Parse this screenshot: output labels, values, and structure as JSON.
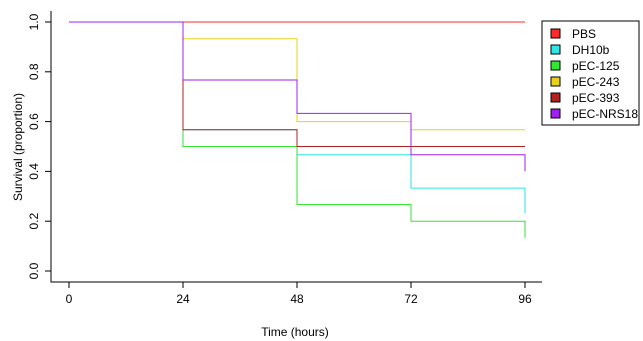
{
  "chart_data": {
    "type": "line",
    "subtype": "step",
    "title": "",
    "xlabel": "Time (hours)",
    "ylabel": "Survival (proportion)",
    "xlim": [
      0,
      96
    ],
    "ylim": [
      0,
      1
    ],
    "x_ticks": [
      0,
      24,
      48,
      72,
      96
    ],
    "x_tick_labels": [
      "0",
      "24",
      "48",
      "72",
      "96"
    ],
    "y_ticks": [
      0,
      0.2,
      0.4,
      0.6,
      0.8,
      1.0
    ],
    "y_tick_labels": [
      "0.0",
      "0.2",
      "0.4",
      "0.6",
      "0.8",
      "1.0"
    ],
    "grid": false,
    "legend_position": "top-right",
    "series": [
      {
        "name": "PBS",
        "color": "#ff2a2a",
        "x": [
          0,
          24,
          48,
          72,
          96
        ],
        "y": [
          1.0,
          1.0,
          1.0,
          1.0,
          1.0
        ]
      },
      {
        "name": "DH10b",
        "color": "#2ee6e6",
        "x": [
          0,
          24,
          48,
          72,
          96
        ],
        "y": [
          1.0,
          0.567,
          0.467,
          0.333,
          0.233
        ]
      },
      {
        "name": "pEC-125",
        "color": "#33e633",
        "x": [
          0,
          24,
          48,
          72,
          96
        ],
        "y": [
          1.0,
          0.5,
          0.267,
          0.2,
          0.133
        ]
      },
      {
        "name": "pEC-243",
        "color": "#e6d21a",
        "x": [
          0,
          24,
          48,
          72,
          96
        ],
        "y": [
          1.0,
          0.933,
          0.6,
          0.567,
          0.567
        ]
      },
      {
        "name": "pEC-393",
        "color": "#b22222",
        "x": [
          0,
          24,
          48,
          72,
          96
        ],
        "y": [
          1.0,
          0.567,
          0.5,
          0.5,
          0.5
        ]
      },
      {
        "name": "pEC-NRS18",
        "color": "#a020f0",
        "x": [
          0,
          24,
          48,
          72,
          96
        ],
        "y": [
          1.0,
          0.767,
          0.633,
          0.467,
          0.4
        ]
      }
    ]
  }
}
